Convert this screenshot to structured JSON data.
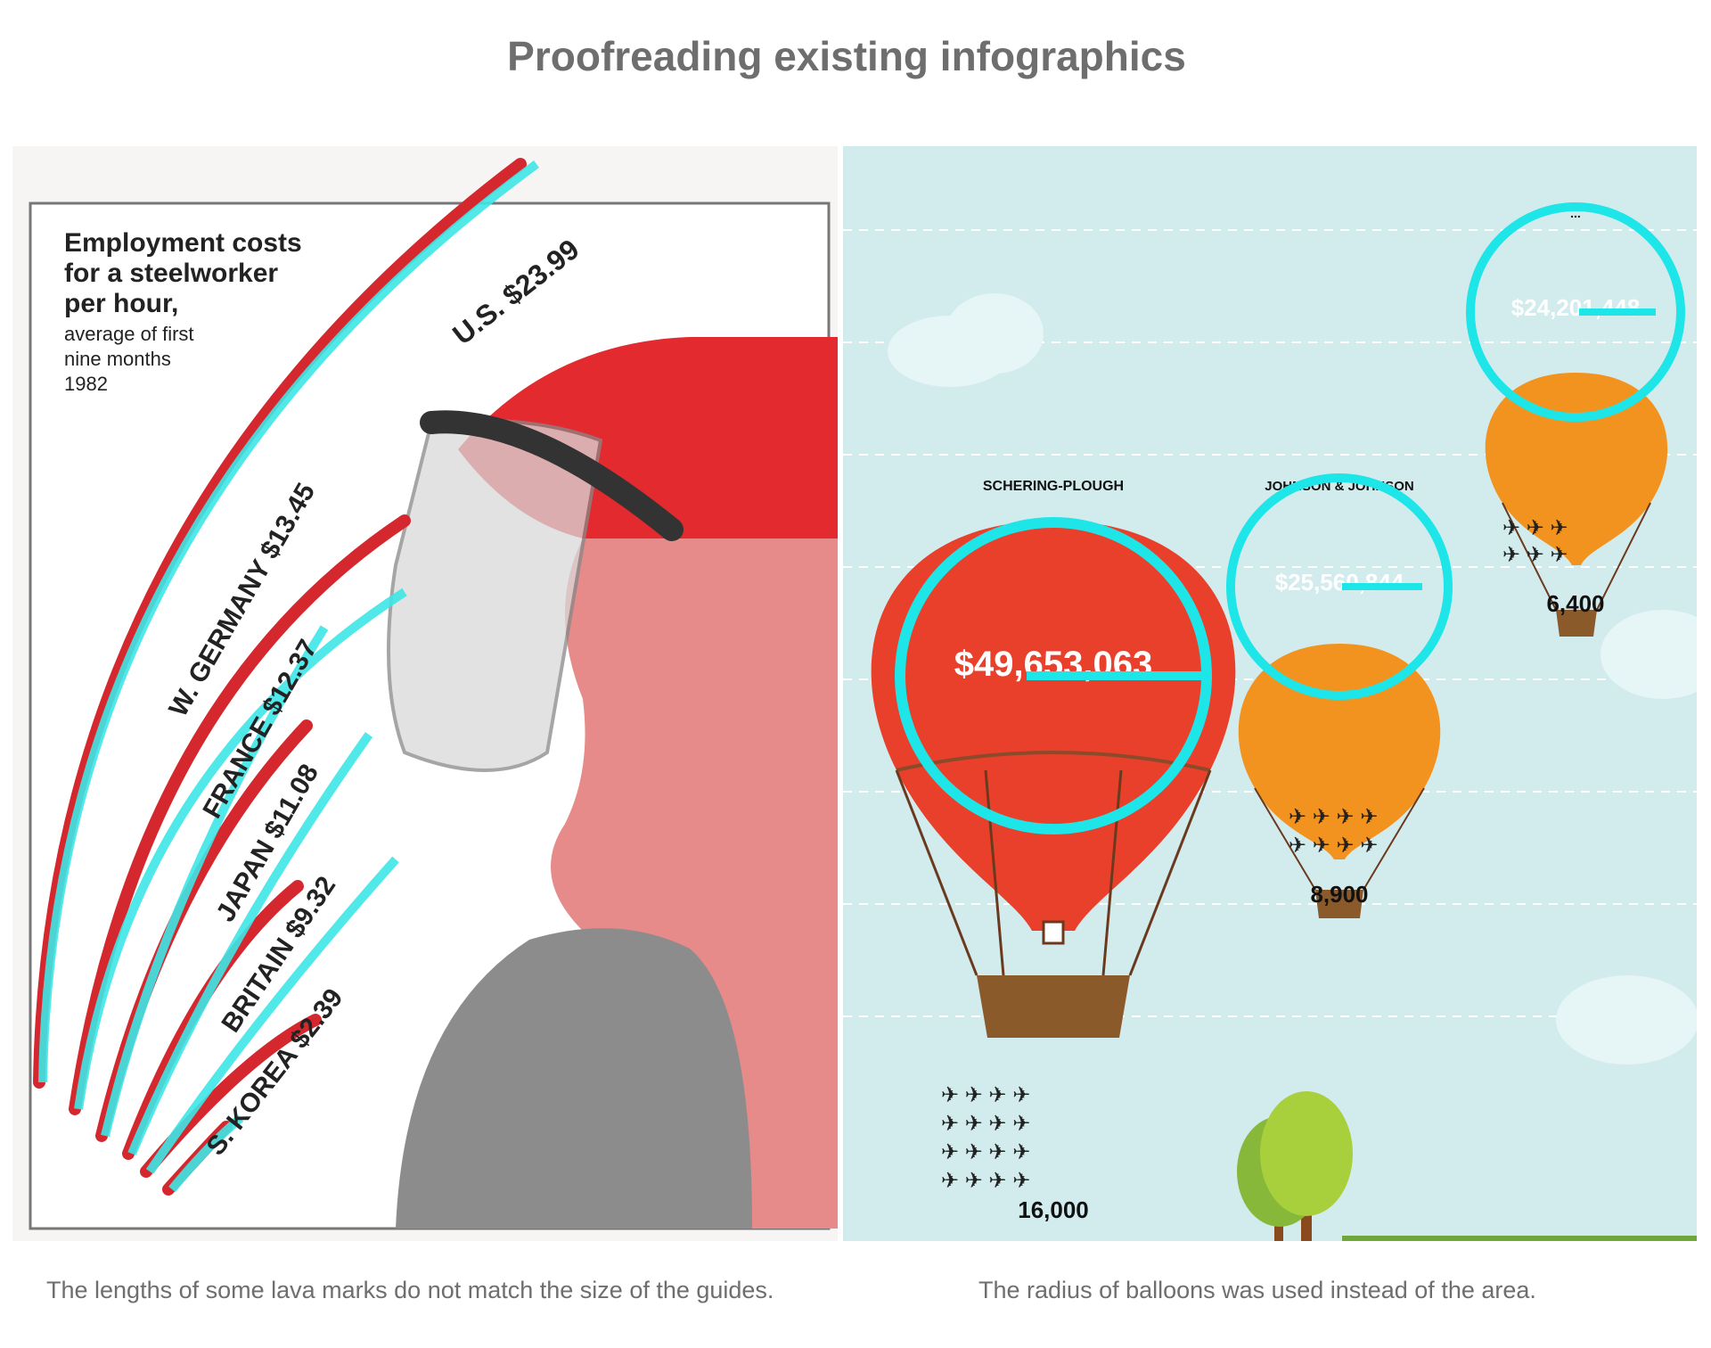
{
  "title": "Proofreading existing infographics",
  "left_panel": {
    "caption": "The lengths of some lava marks do not match the size of the guides.",
    "heading": {
      "line1": "Employment costs",
      "line2": "for a steelworker",
      "line3": "per hour,",
      "line4": "average of first",
      "line5": "nine months",
      "line6": "1982"
    },
    "labels": {
      "us": "U.S. $23.99",
      "germany": "W. GERMANY $13.45",
      "france": "FRANCE $12.37",
      "japan": "JAPAN $11.08",
      "britain": "BRITAIN $9.32",
      "korea": "S. KOREA $2.39"
    },
    "guide_color": "#3ee6e6",
    "mark_color": "#d4282e"
  },
  "right_panel": {
    "caption": "The radius of balloons was used instead of the area.",
    "balloons": {
      "schering": {
        "company": "SCHERING-PLOUGH",
        "amount": "$49,653,063",
        "count": "16,000",
        "color": "#e8402a"
      },
      "johnson": {
        "company": "JOHNSON & JOHNSON",
        "amount": "$25,560,844",
        "count": "8,900",
        "color": "#f3931f"
      },
      "third": {
        "company": "...",
        "amount": "$24,201,448",
        "count": "6,400",
        "color": "#f3931f"
      }
    },
    "guide_color": "#1de5e8",
    "sky_color": "#d2ecee"
  }
}
